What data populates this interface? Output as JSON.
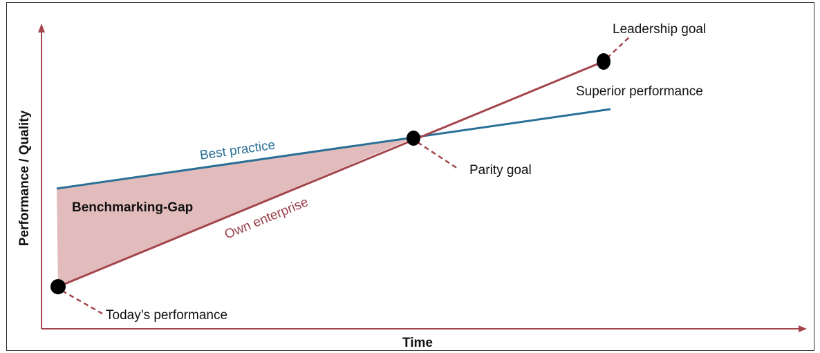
{
  "axes": {
    "y_label": "Performance / Quality",
    "x_label": "Time"
  },
  "lines": {
    "best_practice": "Best practice",
    "own_enterprise": "Own enterprise"
  },
  "regions": {
    "gap": "Benchmarking-Gap"
  },
  "markers": {
    "today": "Today’s performance",
    "parity": "Parity goal",
    "leadership": "Leadership goal"
  },
  "annotations": {
    "superior": "Superior performance"
  },
  "colors": {
    "best_practice": "#2a6f96",
    "own_enterprise": "#9b3f48",
    "gap_fill": "#e2bcbc",
    "axis": "#a4454d",
    "marker": "#000000"
  }
}
